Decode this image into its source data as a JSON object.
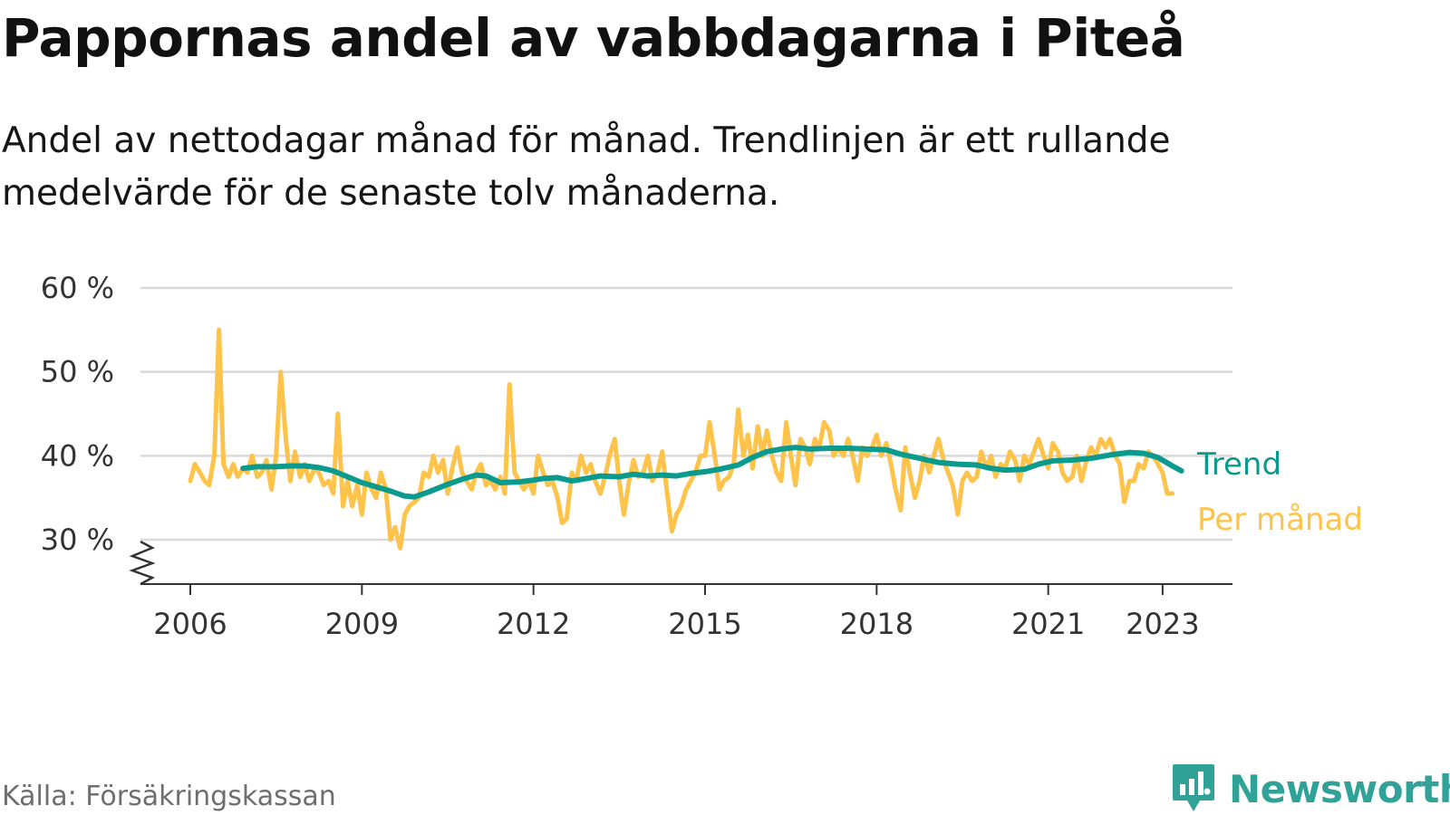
{
  "header": {
    "title": "Pappornas andel av vabbdagarna i Piteå",
    "subtitle": "Andel av nettodagar månad för månad. Trendlinjen är ett rullande medelvärde för de senaste tolv månaderna."
  },
  "footer": {
    "source": "Källa: Försäkringskassan",
    "brand": "Newsworthy"
  },
  "colors": {
    "monthly": "#fec34a",
    "trend": "#0a9b8e",
    "grid": "#d9d9d9",
    "axis": "#333333",
    "brand": "#30a298"
  },
  "chart_data": {
    "type": "line",
    "title": "Pappornas andel av vabbdagarna i Piteå",
    "xlabel": "",
    "ylabel": "",
    "x_range": [
      2005.1,
      2024.2
    ],
    "ylim": [
      25,
      60
    ],
    "y_axis_break": true,
    "grid": "horizontal",
    "legend": "direct labels at right end of lines",
    "y_ticks": [
      {
        "value": 30,
        "label": "30 %"
      },
      {
        "value": 40,
        "label": "40 %"
      },
      {
        "value": 50,
        "label": "50 %"
      },
      {
        "value": 60,
        "label": "60 %"
      }
    ],
    "x_ticks": [
      {
        "value": 2006,
        "label": "2006"
      },
      {
        "value": 2009,
        "label": "2009"
      },
      {
        "value": 2012,
        "label": "2012"
      },
      {
        "value": 2015,
        "label": "2015"
      },
      {
        "value": 2018,
        "label": "2018"
      },
      {
        "value": 2021,
        "label": "2021"
      },
      {
        "value": 2023,
        "label": "2023"
      }
    ],
    "series": [
      {
        "name": "Per månad",
        "color": "#fec34a",
        "points": [
          [
            2006.0,
            37
          ],
          [
            2006.08,
            39
          ],
          [
            2006.17,
            38
          ],
          [
            2006.25,
            37
          ],
          [
            2006.33,
            36.5
          ],
          [
            2006.42,
            40
          ],
          [
            2006.5,
            55
          ],
          [
            2006.58,
            39
          ],
          [
            2006.67,
            37.5
          ],
          [
            2006.75,
            39
          ],
          [
            2006.83,
            37.5
          ],
          [
            2006.92,
            38.5
          ],
          [
            2007.0,
            38
          ],
          [
            2007.08,
            40
          ],
          [
            2007.17,
            37.5
          ],
          [
            2007.25,
            38
          ],
          [
            2007.33,
            39.5
          ],
          [
            2007.42,
            36
          ],
          [
            2007.5,
            40
          ],
          [
            2007.58,
            50
          ],
          [
            2007.67,
            42
          ],
          [
            2007.75,
            37
          ],
          [
            2007.83,
            40.5
          ],
          [
            2007.92,
            37.5
          ],
          [
            2008.0,
            39
          ],
          [
            2008.08,
            37
          ],
          [
            2008.17,
            38.5
          ],
          [
            2008.25,
            38
          ],
          [
            2008.33,
            36.5
          ],
          [
            2008.42,
            37
          ],
          [
            2008.5,
            35.5
          ],
          [
            2008.58,
            45
          ],
          [
            2008.67,
            34
          ],
          [
            2008.75,
            37
          ],
          [
            2008.83,
            34
          ],
          [
            2008.92,
            36.5
          ],
          [
            2009.0,
            33
          ],
          [
            2009.08,
            38
          ],
          [
            2009.17,
            36
          ],
          [
            2009.25,
            35
          ],
          [
            2009.33,
            38
          ],
          [
            2009.42,
            36
          ],
          [
            2009.5,
            30
          ],
          [
            2009.58,
            31.5
          ],
          [
            2009.67,
            29
          ],
          [
            2009.75,
            33
          ],
          [
            2009.83,
            34
          ],
          [
            2009.92,
            34.5
          ],
          [
            2010.0,
            35
          ],
          [
            2010.08,
            38
          ],
          [
            2010.17,
            37.5
          ],
          [
            2010.25,
            40
          ],
          [
            2010.33,
            38
          ],
          [
            2010.42,
            39.5
          ],
          [
            2010.5,
            35.5
          ],
          [
            2010.58,
            38.5
          ],
          [
            2010.67,
            41
          ],
          [
            2010.75,
            38
          ],
          [
            2010.83,
            37
          ],
          [
            2010.92,
            36
          ],
          [
            2011.0,
            38
          ],
          [
            2011.08,
            39
          ],
          [
            2011.17,
            36.5
          ],
          [
            2011.25,
            37
          ],
          [
            2011.33,
            36
          ],
          [
            2011.42,
            37.5
          ],
          [
            2011.5,
            35.5
          ],
          [
            2011.58,
            48.5
          ],
          [
            2011.67,
            38
          ],
          [
            2011.75,
            37
          ],
          [
            2011.83,
            36
          ],
          [
            2011.92,
            37
          ],
          [
            2012.0,
            35.5
          ],
          [
            2012.08,
            40
          ],
          [
            2012.17,
            38
          ],
          [
            2012.25,
            36.5
          ],
          [
            2012.33,
            37
          ],
          [
            2012.42,
            35
          ],
          [
            2012.5,
            32
          ],
          [
            2012.58,
            32.5
          ],
          [
            2012.67,
            38
          ],
          [
            2012.75,
            37
          ],
          [
            2012.83,
            40
          ],
          [
            2012.92,
            38
          ],
          [
            2013.0,
            39
          ],
          [
            2013.08,
            37
          ],
          [
            2013.17,
            35.5
          ],
          [
            2013.25,
            37.5
          ],
          [
            2013.33,
            40
          ],
          [
            2013.42,
            42
          ],
          [
            2013.5,
            37
          ],
          [
            2013.58,
            33
          ],
          [
            2013.67,
            37
          ],
          [
            2013.75,
            39.5
          ],
          [
            2013.83,
            37.5
          ],
          [
            2013.92,
            38
          ],
          [
            2014.0,
            40
          ],
          [
            2014.08,
            37
          ],
          [
            2014.17,
            38
          ],
          [
            2014.25,
            40.5
          ],
          [
            2014.33,
            36
          ],
          [
            2014.42,
            31
          ],
          [
            2014.5,
            33
          ],
          [
            2014.58,
            34
          ],
          [
            2014.67,
            36
          ],
          [
            2014.75,
            37
          ],
          [
            2014.83,
            38
          ],
          [
            2014.92,
            40
          ],
          [
            2015.0,
            40
          ],
          [
            2015.08,
            44
          ],
          [
            2015.17,
            40
          ],
          [
            2015.25,
            36
          ],
          [
            2015.33,
            37
          ],
          [
            2015.42,
            37.5
          ],
          [
            2015.5,
            39
          ],
          [
            2015.58,
            45.5
          ],
          [
            2015.67,
            40
          ],
          [
            2015.75,
            42.5
          ],
          [
            2015.83,
            38.5
          ],
          [
            2015.92,
            43.5
          ],
          [
            2016.0,
            40
          ],
          [
            2016.08,
            43
          ],
          [
            2016.17,
            40
          ],
          [
            2016.25,
            38
          ],
          [
            2016.33,
            37
          ],
          [
            2016.42,
            44
          ],
          [
            2016.5,
            40
          ],
          [
            2016.58,
            36.5
          ],
          [
            2016.67,
            42
          ],
          [
            2016.75,
            41
          ],
          [
            2016.83,
            39
          ],
          [
            2016.92,
            42
          ],
          [
            2017.0,
            41
          ],
          [
            2017.08,
            44
          ],
          [
            2017.17,
            43
          ],
          [
            2017.25,
            40
          ],
          [
            2017.33,
            41
          ],
          [
            2017.42,
            40
          ],
          [
            2017.5,
            42
          ],
          [
            2017.58,
            40
          ],
          [
            2017.67,
            37
          ],
          [
            2017.75,
            41
          ],
          [
            2017.83,
            40
          ],
          [
            2017.92,
            41
          ],
          [
            2018.0,
            42.5
          ],
          [
            2018.08,
            40
          ],
          [
            2018.17,
            41.5
          ],
          [
            2018.25,
            39
          ],
          [
            2018.33,
            36
          ],
          [
            2018.42,
            33.5
          ],
          [
            2018.5,
            41
          ],
          [
            2018.58,
            38
          ],
          [
            2018.67,
            35
          ],
          [
            2018.75,
            37
          ],
          [
            2018.83,
            40
          ],
          [
            2018.92,
            38
          ],
          [
            2019.0,
            40
          ],
          [
            2019.08,
            42
          ],
          [
            2019.17,
            39.5
          ],
          [
            2019.25,
            38
          ],
          [
            2019.33,
            36.5
          ],
          [
            2019.42,
            33
          ],
          [
            2019.5,
            37
          ],
          [
            2019.58,
            38
          ],
          [
            2019.67,
            37
          ],
          [
            2019.75,
            37.5
          ],
          [
            2019.83,
            40.5
          ],
          [
            2019.92,
            38.5
          ],
          [
            2020.0,
            40
          ],
          [
            2020.08,
            37.5
          ],
          [
            2020.17,
            39
          ],
          [
            2020.25,
            38.5
          ],
          [
            2020.33,
            40.5
          ],
          [
            2020.42,
            39.5
          ],
          [
            2020.5,
            37
          ],
          [
            2020.58,
            40
          ],
          [
            2020.67,
            39
          ],
          [
            2020.75,
            40.5
          ],
          [
            2020.83,
            42
          ],
          [
            2020.92,
            40
          ],
          [
            2021.0,
            38.5
          ],
          [
            2021.08,
            41.5
          ],
          [
            2021.17,
            40.5
          ],
          [
            2021.25,
            38
          ],
          [
            2021.33,
            37
          ],
          [
            2021.42,
            37.5
          ],
          [
            2021.5,
            40
          ],
          [
            2021.58,
            37
          ],
          [
            2021.67,
            39.5
          ],
          [
            2021.75,
            41
          ],
          [
            2021.83,
            40
          ],
          [
            2021.92,
            42
          ],
          [
            2022.0,
            41
          ],
          [
            2022.08,
            42
          ],
          [
            2022.17,
            40
          ],
          [
            2022.25,
            39
          ],
          [
            2022.33,
            34.5
          ],
          [
            2022.42,
            37
          ],
          [
            2022.5,
            37
          ],
          [
            2022.58,
            39
          ],
          [
            2022.67,
            38.5
          ],
          [
            2022.75,
            40.5
          ],
          [
            2022.83,
            40
          ],
          [
            2022.92,
            39
          ],
          [
            2023.0,
            38
          ],
          [
            2023.08,
            35.5
          ],
          [
            2023.17,
            35.5
          ]
        ]
      },
      {
        "name": "Trend",
        "color": "#0a9b8e",
        "points": [
          [
            2006.92,
            38.5
          ],
          [
            2007.17,
            38.7
          ],
          [
            2007.5,
            38.7
          ],
          [
            2007.75,
            38.8
          ],
          [
            2008.0,
            38.8
          ],
          [
            2008.25,
            38.6
          ],
          [
            2008.5,
            38.2
          ],
          [
            2008.75,
            37.5
          ],
          [
            2009.0,
            36.8
          ],
          [
            2009.25,
            36.3
          ],
          [
            2009.5,
            35.8
          ],
          [
            2009.75,
            35.2
          ],
          [
            2009.92,
            35.1
          ],
          [
            2010.17,
            35.7
          ],
          [
            2010.5,
            36.6
          ],
          [
            2010.75,
            37.2
          ],
          [
            2011.0,
            37.7
          ],
          [
            2011.17,
            37.6
          ],
          [
            2011.42,
            36.8
          ],
          [
            2011.75,
            36.9
          ],
          [
            2012.0,
            37.1
          ],
          [
            2012.17,
            37.3
          ],
          [
            2012.42,
            37.4
          ],
          [
            2012.67,
            37.0
          ],
          [
            2012.92,
            37.3
          ],
          [
            2013.17,
            37.6
          ],
          [
            2013.5,
            37.5
          ],
          [
            2013.75,
            37.8
          ],
          [
            2014.0,
            37.6
          ],
          [
            2014.25,
            37.7
          ],
          [
            2014.5,
            37.6
          ],
          [
            2014.75,
            37.9
          ],
          [
            2015.0,
            38.1
          ],
          [
            2015.25,
            38.4
          ],
          [
            2015.58,
            38.9
          ],
          [
            2015.83,
            39.8
          ],
          [
            2016.08,
            40.5
          ],
          [
            2016.33,
            40.8
          ],
          [
            2016.58,
            41.0
          ],
          [
            2016.83,
            40.8
          ],
          [
            2017.17,
            40.9
          ],
          [
            2017.5,
            40.9
          ],
          [
            2017.83,
            40.8
          ],
          [
            2018.17,
            40.7
          ],
          [
            2018.42,
            40.2
          ],
          [
            2018.75,
            39.7
          ],
          [
            2019.08,
            39.2
          ],
          [
            2019.42,
            39.0
          ],
          [
            2019.75,
            38.9
          ],
          [
            2020.0,
            38.5
          ],
          [
            2020.25,
            38.3
          ],
          [
            2020.58,
            38.4
          ],
          [
            2020.83,
            39.0
          ],
          [
            2021.08,
            39.4
          ],
          [
            2021.42,
            39.5
          ],
          [
            2021.75,
            39.7
          ],
          [
            2022.08,
            40.1
          ],
          [
            2022.42,
            40.4
          ],
          [
            2022.67,
            40.3
          ],
          [
            2022.92,
            39.8
          ],
          [
            2023.17,
            38.8
          ],
          [
            2023.33,
            38.2
          ]
        ]
      }
    ]
  }
}
